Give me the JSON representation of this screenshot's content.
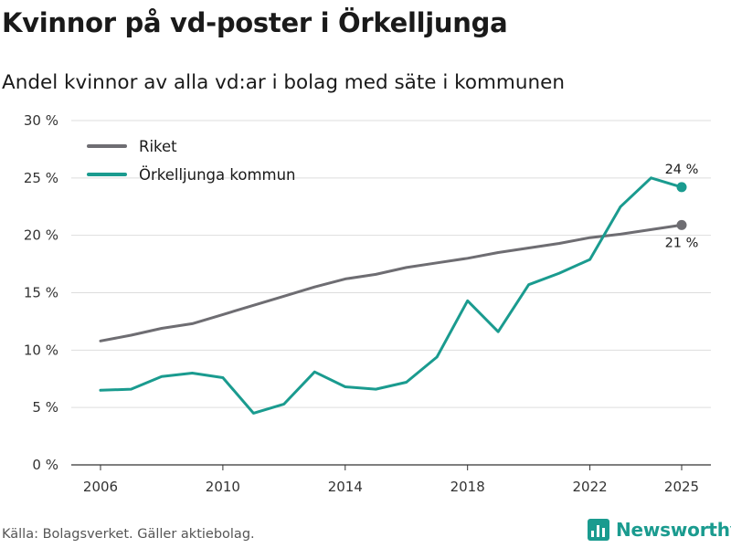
{
  "title": "Kvinnor på vd-poster i Örkelljunga",
  "subtitle": "Andel kvinnor av alla vd:ar i bolag med säte i kommunen",
  "source": "Källa: Bolagsverket. Gäller aktiebolag.",
  "brand": "Newsworthy",
  "colors": {
    "riket": "#6e6d72",
    "kommun": "#1a9b8f",
    "brand": "#1a9b8f"
  },
  "chart_data": {
    "type": "line",
    "x": [
      2006,
      2007,
      2008,
      2009,
      2010,
      2011,
      2012,
      2013,
      2014,
      2015,
      2016,
      2017,
      2018,
      2019,
      2020,
      2021,
      2022,
      2023,
      2024,
      2025
    ],
    "series": [
      {
        "name": "Riket",
        "color": "#6e6d72",
        "values": [
          10.8,
          11.3,
          11.9,
          12.3,
          13.1,
          13.9,
          14.7,
          15.5,
          16.2,
          16.6,
          17.2,
          17.6,
          18.0,
          18.5,
          18.9,
          19.3,
          19.8,
          20.1,
          20.5,
          20.9
        ],
        "end_label": "21 %"
      },
      {
        "name": "Örkelljunga kommun",
        "color": "#1a9b8f",
        "values": [
          6.5,
          6.6,
          7.7,
          8.0,
          7.6,
          4.5,
          5.3,
          8.1,
          6.8,
          6.6,
          7.2,
          9.4,
          14.3,
          11.6,
          15.7,
          16.7,
          17.9,
          22.5,
          25.0,
          24.2
        ],
        "end_label": "24 %"
      }
    ],
    "xticks": [
      "2006",
      "2010",
      "2014",
      "2018",
      "2022",
      "2025"
    ],
    "xtick_values": [
      2006,
      2010,
      2014,
      2018,
      2022,
      2025
    ],
    "yticks": [
      "0 %",
      "5 %",
      "10 %",
      "15 %",
      "20 %",
      "25 %",
      "30 %"
    ],
    "ytick_values": [
      0,
      5,
      10,
      15,
      20,
      25,
      30
    ],
    "ylim": [
      0,
      30
    ],
    "xlim": [
      2006,
      2025
    ],
    "xlabel": "",
    "ylabel": "",
    "grid": true,
    "legend_position": "top-left"
  }
}
